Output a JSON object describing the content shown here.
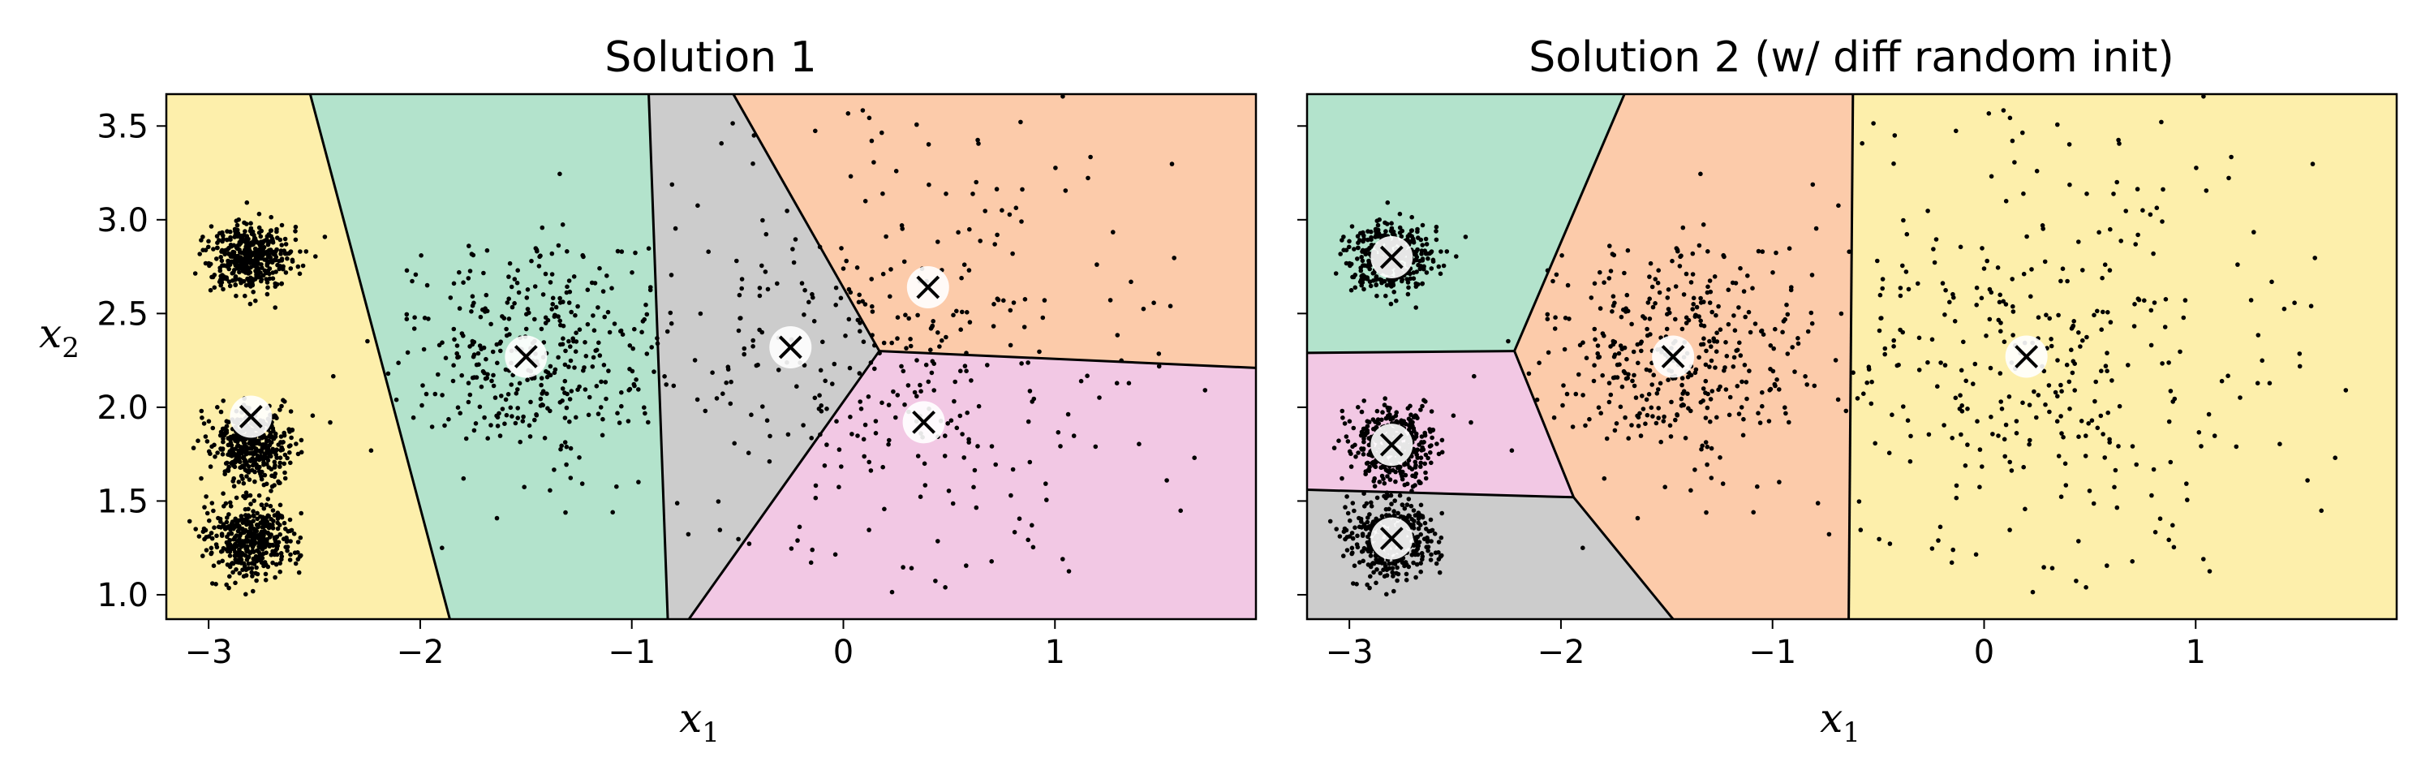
{
  "chart_data": [
    {
      "type": "scatter",
      "title": "Solution 1",
      "xlabel": "x",
      "xlabel_sub": "1",
      "ylabel": "x",
      "ylabel_sub": "2",
      "xlim": [
        -3.2,
        1.95
      ],
      "ylim": [
        0.87,
        3.67
      ],
      "xticks": [
        -3,
        -2,
        -1,
        0,
        1
      ],
      "yticks": [
        1.0,
        1.5,
        2.0,
        2.5,
        3.0,
        3.5
      ],
      "region_colors": [
        "#fdefab",
        "#b3e3cc",
        "#cccccc",
        "#fccbaa",
        "#f2c8e4"
      ],
      "regions": [
        {
          "color_index": 0,
          "polygon": [
            [
              -3.2,
              3.67
            ],
            [
              -2.52,
              3.67
            ],
            [
              -1.86,
              0.87
            ],
            [
              -3.2,
              0.87
            ]
          ]
        },
        {
          "color_index": 1,
          "polygon": [
            [
              -2.52,
              3.67
            ],
            [
              -0.92,
              3.67
            ],
            [
              -0.83,
              0.87
            ],
            [
              -1.86,
              0.87
            ]
          ]
        },
        {
          "color_index": 2,
          "polygon": [
            [
              -0.92,
              3.67
            ],
            [
              -0.52,
              3.67
            ],
            [
              0.17,
              2.3
            ],
            [
              -0.73,
              0.87
            ],
            [
              -0.83,
              0.87
            ]
          ]
        },
        {
          "color_index": 3,
          "polygon": [
            [
              -0.52,
              3.67
            ],
            [
              1.95,
              3.67
            ],
            [
              1.95,
              2.21
            ],
            [
              0.17,
              2.3
            ]
          ]
        },
        {
          "color_index": 4,
          "polygon": [
            [
              0.17,
              2.3
            ],
            [
              1.95,
              2.21
            ],
            [
              1.95,
              0.87
            ],
            [
              -0.73,
              0.87
            ]
          ]
        }
      ],
      "boundaries": [
        [
          [
            -2.52,
            3.67
          ],
          [
            -1.86,
            0.87
          ]
        ],
        [
          [
            -0.92,
            3.67
          ],
          [
            -0.83,
            0.87
          ]
        ],
        [
          [
            -0.52,
            3.67
          ],
          [
            0.17,
            2.3
          ]
        ],
        [
          [
            0.17,
            2.3
          ],
          [
            -0.73,
            0.87
          ]
        ],
        [
          [
            0.17,
            2.3
          ],
          [
            1.95,
            2.21
          ]
        ]
      ],
      "centroids": [
        [
          -2.8,
          1.95
        ],
        [
          -1.5,
          2.27
        ],
        [
          -0.25,
          2.32
        ],
        [
          0.4,
          2.64
        ],
        [
          0.38,
          1.92
        ]
      ]
    },
    {
      "type": "scatter",
      "title": "Solution 2 (w/ diff random init)",
      "xlabel": "x",
      "xlabel_sub": "1",
      "xlim": [
        -3.2,
        1.95
      ],
      "ylim": [
        0.87,
        3.67
      ],
      "xticks": [
        -3,
        -2,
        -1,
        0,
        1
      ],
      "yticks": [
        1.0,
        1.5,
        2.0,
        2.5,
        3.0,
        3.5
      ],
      "region_colors": [
        "#fdefab",
        "#b3e3cc",
        "#cccccc",
        "#fccbaa",
        "#f2c8e4"
      ],
      "regions": [
        {
          "color_index": 1,
          "polygon": [
            [
              -3.2,
              3.67
            ],
            [
              -1.7,
              3.67
            ],
            [
              -2.22,
              2.3
            ],
            [
              -3.2,
              2.29
            ]
          ]
        },
        {
          "color_index": 4,
          "polygon": [
            [
              -3.2,
              2.29
            ],
            [
              -2.22,
              2.3
            ],
            [
              -1.94,
              1.52
            ],
            [
              -3.2,
              1.56
            ]
          ]
        },
        {
          "color_index": 2,
          "polygon": [
            [
              -3.2,
              1.56
            ],
            [
              -1.94,
              1.52
            ],
            [
              -1.47,
              0.87
            ],
            [
              -3.2,
              0.87
            ]
          ]
        },
        {
          "color_index": 3,
          "polygon": [
            [
              -1.7,
              3.67
            ],
            [
              -0.62,
              3.67
            ],
            [
              -0.64,
              0.87
            ],
            [
              -1.47,
              0.87
            ],
            [
              -1.94,
              1.52
            ],
            [
              -2.22,
              2.3
            ]
          ]
        },
        {
          "color_index": 0,
          "polygon": [
            [
              -0.62,
              3.67
            ],
            [
              1.95,
              3.67
            ],
            [
              1.95,
              0.87
            ],
            [
              -0.64,
              0.87
            ]
          ]
        }
      ],
      "boundaries": [
        [
          [
            -1.7,
            3.67
          ],
          [
            -2.22,
            2.3
          ]
        ],
        [
          [
            -3.2,
            2.29
          ],
          [
            -2.22,
            2.3
          ]
        ],
        [
          [
            -2.22,
            2.3
          ],
          [
            -1.94,
            1.52
          ]
        ],
        [
          [
            -3.2,
            1.56
          ],
          [
            -1.94,
            1.52
          ]
        ],
        [
          [
            -1.94,
            1.52
          ],
          [
            -1.47,
            0.87
          ]
        ],
        [
          [
            -0.62,
            3.67
          ],
          [
            -0.64,
            0.87
          ]
        ]
      ],
      "centroids": [
        [
          -2.8,
          2.8
        ],
        [
          -2.8,
          1.8
        ],
        [
          -2.8,
          1.3
        ],
        [
          -1.47,
          2.27
        ],
        [
          0.2,
          2.27
        ]
      ]
    }
  ],
  "point_clusters": [
    {
      "center": [
        -2.8,
        2.8
      ],
      "std": 0.1,
      "n": 420
    },
    {
      "center": [
        -2.8,
        1.8
      ],
      "std": 0.1,
      "n": 420
    },
    {
      "center": [
        -2.8,
        1.3
      ],
      "std": 0.1,
      "n": 420
    },
    {
      "center": [
        -1.47,
        2.27
      ],
      "std": 0.3,
      "n": 380
    },
    {
      "center": [
        0.2,
        2.27
      ],
      "std": 0.6,
      "n": 380
    }
  ]
}
